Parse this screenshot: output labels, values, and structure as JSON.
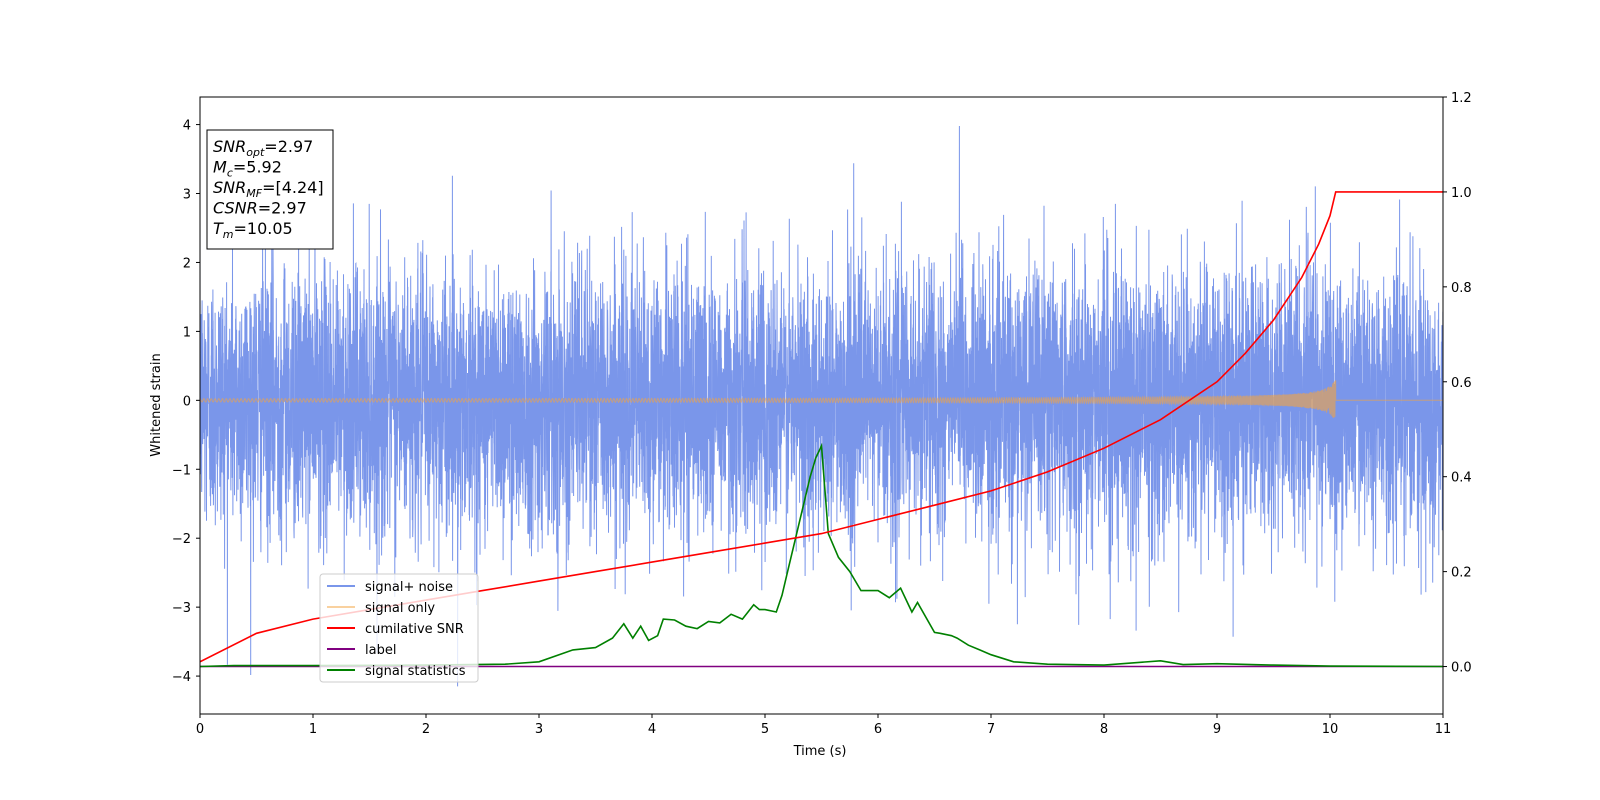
{
  "chart_data": {
    "type": "line",
    "xlabel": "Time (s)",
    "ylabel": "Whitened strain",
    "xlim": [
      0,
      11
    ],
    "ylim": [
      -4.55,
      4.4
    ],
    "y2lim": [
      -0.1,
      1.2
    ],
    "xticks": [
      "0",
      "1",
      "2",
      "3",
      "4",
      "5",
      "6",
      "7",
      "8",
      "9",
      "10",
      "11"
    ],
    "yticks": [
      "4",
      "3",
      "2",
      "1",
      "0",
      "−1",
      "−2",
      "−3",
      "−4"
    ],
    "y2ticks": [
      "1.2",
      "1.0",
      "0.8",
      "0.6",
      "0.4",
      "0.2",
      "0.0"
    ],
    "legend_position": "lower-left",
    "grid": false,
    "annotation": {
      "lines": [
        {
          "base": "SNR",
          "sub": "opt",
          "value": "=2.97"
        },
        {
          "base": "M",
          "sub": "c",
          "value": "=5.92"
        },
        {
          "base": "SNR",
          "sub": "MF",
          "value": "=[4.24]"
        },
        {
          "base": "CSNR",
          "sub": "",
          "value": "=2.97"
        },
        {
          "base": "T",
          "sub": "m",
          "value": "=10.05"
        }
      ]
    },
    "series": [
      {
        "name": "signal+ noise",
        "axis": "left",
        "color": "#4169e1",
        "kind": "noise",
        "noise_std": 0.95,
        "noise_peak": 3.98,
        "noise_trough": -4.15
      },
      {
        "name": "signal only",
        "axis": "left",
        "color": "#f4a340",
        "kind": "chirp",
        "merger_time": 10.05,
        "peak_amplitude": 0.3
      },
      {
        "name": "cumilative SNR",
        "axis": "right",
        "color": "#ff0000",
        "x": [
          0,
          0.5,
          1,
          1.5,
          2,
          2.5,
          3,
          3.5,
          4,
          4.5,
          5,
          5.5,
          6,
          6.5,
          7,
          7.5,
          8,
          8.5,
          9,
          9.25,
          9.5,
          9.75,
          9.9,
          10,
          10.05,
          11
        ],
        "y": [
          0.01,
          0.07,
          0.1,
          0.12,
          0.14,
          0.16,
          0.18,
          0.2,
          0.22,
          0.24,
          0.26,
          0.28,
          0.31,
          0.34,
          0.37,
          0.41,
          0.46,
          0.52,
          0.6,
          0.66,
          0.73,
          0.82,
          0.89,
          0.95,
          1.0,
          1.0
        ]
      },
      {
        "name": "label",
        "axis": "right",
        "color": "#800080",
        "x": [
          0,
          11
        ],
        "y": [
          0,
          0
        ]
      },
      {
        "name": "signal statistics",
        "axis": "right",
        "color": "#008000",
        "x": [
          0,
          0.3,
          1,
          2,
          2.7,
          3,
          3.3,
          3.5,
          3.65,
          3.75,
          3.83,
          3.9,
          3.97,
          4.05,
          4.1,
          4.2,
          4.3,
          4.4,
          4.5,
          4.6,
          4.7,
          4.8,
          4.9,
          4.95,
          5.0,
          5.1,
          5.15,
          5.2,
          5.3,
          5.4,
          5.45,
          5.5,
          5.56,
          5.65,
          5.75,
          5.85,
          6.0,
          6.1,
          6.2,
          6.3,
          6.35,
          6.5,
          6.55,
          6.65,
          6.7,
          6.8,
          6.9,
          7.0,
          7.2,
          7.5,
          8.0,
          8.5,
          8.7,
          9.0,
          9.5,
          10.0,
          11.0
        ],
        "y": [
          0.0,
          0.002,
          0.002,
          0.003,
          0.005,
          0.01,
          0.035,
          0.04,
          0.06,
          0.09,
          0.06,
          0.085,
          0.055,
          0.065,
          0.1,
          0.098,
          0.085,
          0.08,
          0.095,
          0.092,
          0.11,
          0.1,
          0.13,
          0.12,
          0.12,
          0.115,
          0.15,
          0.2,
          0.3,
          0.4,
          0.44,
          0.465,
          0.28,
          0.23,
          0.2,
          0.16,
          0.16,
          0.145,
          0.165,
          0.115,
          0.135,
          0.072,
          0.07,
          0.065,
          0.06,
          0.045,
          0.035,
          0.025,
          0.01,
          0.005,
          0.003,
          0.012,
          0.004,
          0.006,
          0.003,
          0.001,
          0.0
        ]
      }
    ]
  }
}
